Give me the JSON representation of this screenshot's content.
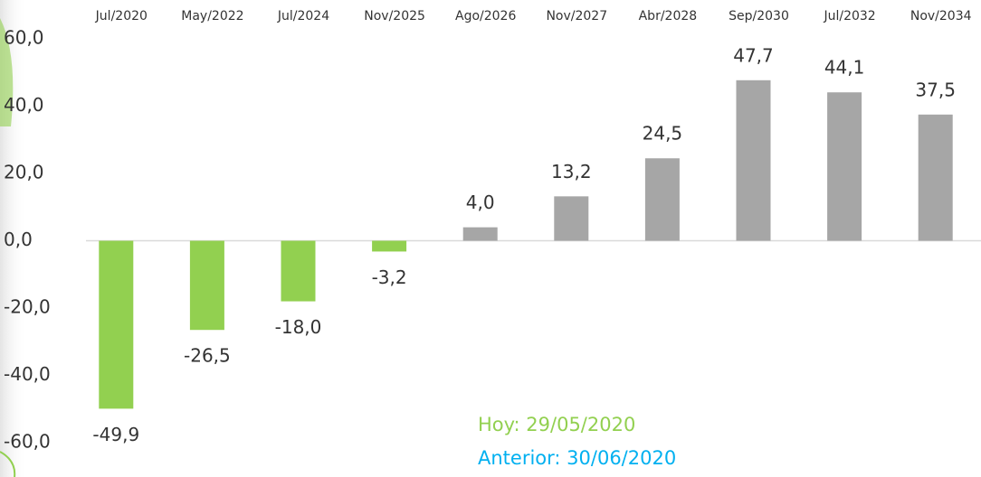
{
  "chart_data": {
    "type": "bar",
    "categories": [
      "Jul/2020",
      "May/2022",
      "Jul/2024",
      "Nov/2025",
      "Ago/2026",
      "Nov/2027",
      "Abr/2028",
      "Sep/2030",
      "Jul/2032",
      "Nov/2034"
    ],
    "values": [
      -49.9,
      -26.5,
      -18.0,
      -3.2,
      4.0,
      13.2,
      24.5,
      47.7,
      44.1,
      37.5
    ],
    "value_labels": [
      "-49,9",
      "-26,5",
      "-18,0",
      "-3,2",
      "4,0",
      "13,2",
      "24,5",
      "47,7",
      "44,1",
      "37,5"
    ],
    "colors": [
      "#92d050",
      "#92d050",
      "#92d050",
      "#92d050",
      "#a6a6a6",
      "#a6a6a6",
      "#a6a6a6",
      "#a6a6a6",
      "#a6a6a6",
      "#a6a6a6"
    ],
    "ylim": [
      -60,
      60
    ],
    "yticks": [
      {
        "value": 60,
        "label": "60,0"
      },
      {
        "value": 40,
        "label": "40,0"
      },
      {
        "value": 20,
        "label": "20,0"
      },
      {
        "value": 0,
        "label": "0,0"
      },
      {
        "value": -20,
        "label": "-20,0"
      },
      {
        "value": -40,
        "label": "-40,0"
      },
      {
        "value": -60,
        "label": "-60,0"
      }
    ],
    "grid": false,
    "annotations": [
      {
        "text": "Hoy: 29/05/2020",
        "color": "#92d050"
      },
      {
        "text": "Anterior: 30/06/2020",
        "color": "#00b0f0"
      }
    ]
  }
}
